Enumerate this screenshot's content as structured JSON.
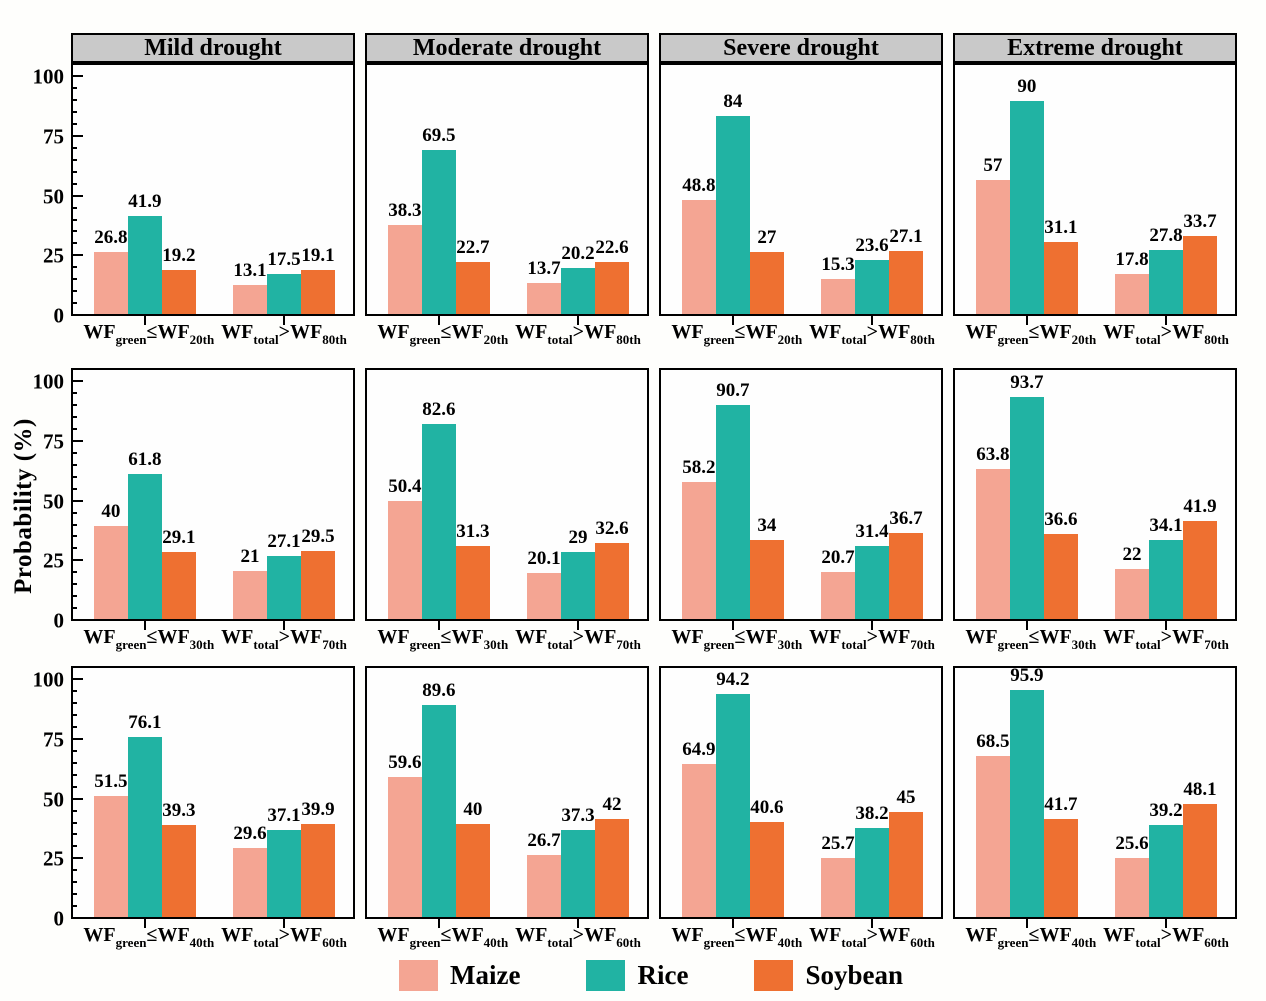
{
  "figure": {
    "ylabel": "Probability (%)",
    "background": "#fefefc",
    "header_bg": "#c9c9c9",
    "frame_color": "#000000"
  },
  "legend": {
    "items": [
      {
        "label": "Maize",
        "color": "#f4a593"
      },
      {
        "label": "Rice",
        "color": "#21b3a3"
      },
      {
        "label": "Soybean",
        "color": "#ee7031"
      }
    ]
  },
  "chart_data": {
    "type": "bar",
    "title": "",
    "ylabel": "Probability (%)",
    "ylim": [
      0,
      106
    ],
    "yticks": [
      0,
      25,
      50,
      75,
      100
    ],
    "minor_tick_step": 5,
    "grid": false,
    "legend_position": "bottom",
    "series_names": [
      "Maize",
      "Rice",
      "Soybean"
    ],
    "series_colors": [
      "#f4a593",
      "#21b3a3",
      "#ee7031"
    ],
    "column_titles": [
      "Mild drought",
      "Moderate drought",
      "Severe drought",
      "Extreme drought"
    ],
    "row_categories": [
      [
        {
          "base1": "WF",
          "sub1": "green",
          "op": "≤",
          "base2": "WF",
          "sub2": "20th"
        },
        {
          "base1": "WF",
          "sub1": "total",
          "op": ">",
          "base2": "WF",
          "sub2": "80th"
        }
      ],
      [
        {
          "base1": "WF",
          "sub1": "green",
          "op": "≤",
          "base2": "WF",
          "sub2": "30th"
        },
        {
          "base1": "WF",
          "sub1": "total",
          "op": ">",
          "base2": "WF",
          "sub2": "70th"
        }
      ],
      [
        {
          "base1": "WF",
          "sub1": "green",
          "op": "≤",
          "base2": "WF",
          "sub2": "40th"
        },
        {
          "base1": "WF",
          "sub1": "total",
          "op": ">",
          "base2": "WF",
          "sub2": "60th"
        }
      ]
    ],
    "panels": [
      {
        "row": 0,
        "col": 0,
        "column": "Mild drought",
        "groups": [
          [
            26.8,
            41.9,
            19.2
          ],
          [
            13.1,
            17.5,
            19.1
          ]
        ]
      },
      {
        "row": 0,
        "col": 1,
        "column": "Moderate drought",
        "groups": [
          [
            38.3,
            69.5,
            22.7
          ],
          [
            13.7,
            20.2,
            22.6
          ]
        ]
      },
      {
        "row": 0,
        "col": 2,
        "column": "Severe drought",
        "groups": [
          [
            48.8,
            84,
            27
          ],
          [
            15.3,
            23.6,
            27.1
          ]
        ]
      },
      {
        "row": 0,
        "col": 3,
        "column": "Extreme drought",
        "groups": [
          [
            57,
            90,
            31.1
          ],
          [
            17.8,
            27.8,
            33.7
          ]
        ]
      },
      {
        "row": 1,
        "col": 0,
        "column": "Mild drought",
        "groups": [
          [
            40,
            61.8,
            29.1
          ],
          [
            21,
            27.1,
            29.5
          ]
        ]
      },
      {
        "row": 1,
        "col": 1,
        "column": "Moderate drought",
        "groups": [
          [
            50.4,
            82.6,
            31.3
          ],
          [
            20.1,
            29,
            32.6
          ]
        ]
      },
      {
        "row": 1,
        "col": 2,
        "column": "Severe drought",
        "groups": [
          [
            58.2,
            90.7,
            34
          ],
          [
            20.7,
            31.4,
            36.7
          ]
        ]
      },
      {
        "row": 1,
        "col": 3,
        "column": "Extreme drought",
        "groups": [
          [
            63.8,
            93.7,
            36.6
          ],
          [
            22,
            34.1,
            41.9
          ]
        ]
      },
      {
        "row": 2,
        "col": 0,
        "column": "Mild drought",
        "groups": [
          [
            51.5,
            76.1,
            39.3
          ],
          [
            29.6,
            37.1,
            39.9
          ]
        ]
      },
      {
        "row": 2,
        "col": 1,
        "column": "Moderate drought",
        "groups": [
          [
            59.6,
            89.6,
            40
          ],
          [
            26.7,
            37.3,
            42
          ]
        ]
      },
      {
        "row": 2,
        "col": 2,
        "column": "Severe drought",
        "groups": [
          [
            64.9,
            94.2,
            40.6
          ],
          [
            25.7,
            38.2,
            45
          ]
        ]
      },
      {
        "row": 2,
        "col": 3,
        "column": "Extreme drought",
        "groups": [
          [
            68.5,
            95.9,
            41.7
          ],
          [
            25.6,
            39.2,
            48.1
          ]
        ]
      }
    ]
  }
}
